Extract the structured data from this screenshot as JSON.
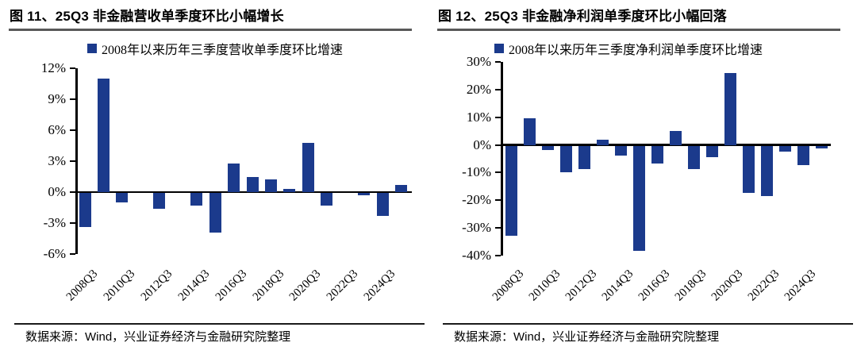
{
  "colors": {
    "bar": "#1b3a8c",
    "axis": "#000000",
    "title_rule": "#595959",
    "footer_rule": "#1a1a1a",
    "text": "#000000"
  },
  "chart_data": [
    {
      "type": "bar",
      "title": "图 11、25Q3 非金融营收单季度环比小幅增长",
      "legend": "2008年以来历年三季度营收单季度环比增速",
      "source": "数据来源：Wind，兴业证券经济与金融研究院整理",
      "categories": [
        "2008Q3",
        "2009Q3",
        "2010Q3",
        "2011Q3",
        "2012Q3",
        "2013Q3",
        "2014Q3",
        "2015Q3",
        "2016Q3",
        "2017Q3",
        "2018Q3",
        "2019Q3",
        "2020Q3",
        "2021Q3",
        "2022Q3",
        "2023Q3",
        "2024Q3",
        "2025Q3"
      ],
      "values": [
        -3.3,
        11.0,
        -0.9,
        0.0,
        -1.5,
        0.0,
        -1.2,
        -3.8,
        2.8,
        1.5,
        1.2,
        0.3,
        4.8,
        -1.2,
        0.0,
        -0.2,
        -2.2,
        0.7
      ],
      "ylim": [
        -6,
        12
      ],
      "yticks": [
        12,
        9,
        6,
        3,
        0,
        -3,
        -6
      ],
      "ytick_labels": [
        "12%",
        "9%",
        "6%",
        "3%",
        "0%",
        "-3%",
        "-6%"
      ],
      "xtick_labels": [
        "2008Q3",
        "2010Q3",
        "2012Q3",
        "2014Q3",
        "2016Q3",
        "2018Q3",
        "2020Q3",
        "2022Q3",
        "2024Q3"
      ],
      "xtick_every": 2,
      "grid": false,
      "legend_position": "top"
    },
    {
      "type": "bar",
      "title": "图 12、25Q3 非金融净利润单季度环比小幅回落",
      "legend": "2008年以来历年三季度净利润单季度环比增速",
      "source": "数据来源：Wind，兴业证券经济与金融研究院整理",
      "categories": [
        "2008Q3",
        "2009Q3",
        "2010Q3",
        "2011Q3",
        "2012Q3",
        "2013Q3",
        "2014Q3",
        "2015Q3",
        "2016Q3",
        "2017Q3",
        "2018Q3",
        "2019Q3",
        "2020Q3",
        "2021Q3",
        "2022Q3",
        "2023Q3",
        "2024Q3",
        "2025Q3"
      ],
      "values": [
        -32.5,
        9.5,
        -1.5,
        -9.5,
        -8.5,
        2.0,
        -3.5,
        -38.0,
        -6.5,
        5.0,
        -8.5,
        -4.0,
        26.0,
        -17.0,
        -18.0,
        -2.0,
        -7.0,
        -1.0
      ],
      "ylim": [
        -40,
        30
      ],
      "yticks": [
        30,
        20,
        10,
        0,
        -10,
        -20,
        -30,
        -40
      ],
      "ytick_labels": [
        "30%",
        "20%",
        "10%",
        "0%",
        "-10%",
        "-20%",
        "-30%",
        "-40%"
      ],
      "xtick_labels": [
        "2008Q3",
        "2010Q3",
        "2012Q3",
        "2014Q3",
        "2016Q3",
        "2018Q3",
        "2020Q3",
        "2022Q3",
        "2024Q3"
      ],
      "xtick_every": 2,
      "grid": false,
      "legend_position": "top"
    }
  ]
}
